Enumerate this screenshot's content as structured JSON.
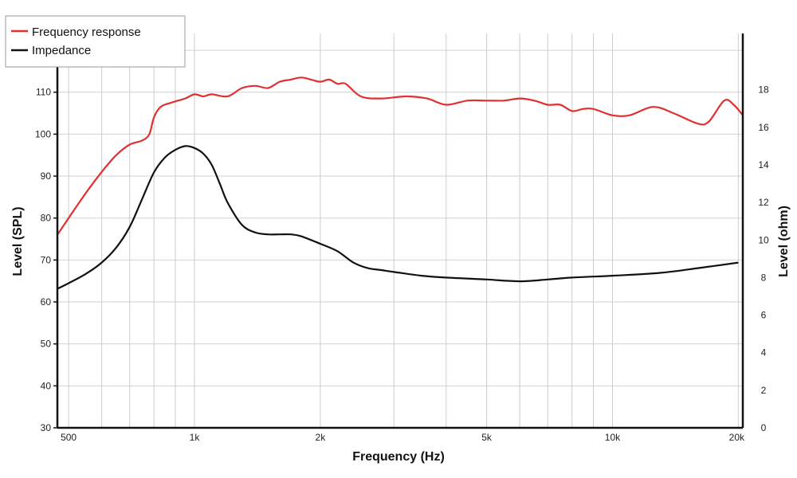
{
  "chart_data": {
    "type": "line",
    "xlabel": "Frequency (Hz)",
    "ylabel": "Level (SPL)",
    "y2label": "Level (ohm)",
    "x_scale": "log",
    "xlim": [
      470,
      20500
    ],
    "ylim": [
      30,
      124
    ],
    "y2lim": [
      0,
      21
    ],
    "grid": true,
    "legend_position": "top-left",
    "x_ticks": [
      {
        "value": 500,
        "label": "500"
      },
      {
        "value": 1000,
        "label": "1k"
      },
      {
        "value": 2000,
        "label": "2k"
      },
      {
        "value": 5000,
        "label": "5k"
      },
      {
        "value": 10000,
        "label": "10k"
      },
      {
        "value": 20000,
        "label": "20k"
      }
    ],
    "x_minor_grid": [
      600,
      700,
      800,
      900,
      3000,
      4000,
      6000,
      7000,
      8000,
      9000
    ],
    "y_ticks": [
      {
        "value": 30,
        "label": "30"
      },
      {
        "value": 40,
        "label": "40"
      },
      {
        "value": 50,
        "label": "50"
      },
      {
        "value": 60,
        "label": "60"
      },
      {
        "value": 70,
        "label": "70"
      },
      {
        "value": 80,
        "label": "80"
      },
      {
        "value": 90,
        "label": "90"
      },
      {
        "value": 100,
        "label": "100"
      },
      {
        "value": 110,
        "label": "110"
      },
      {
        "value": 120,
        "label": "120"
      }
    ],
    "y2_ticks": [
      {
        "value": 0,
        "label": "0"
      },
      {
        "value": 2,
        "label": "2"
      },
      {
        "value": 4,
        "label": "4"
      },
      {
        "value": 6,
        "label": "6"
      },
      {
        "value": 8,
        "label": "8"
      },
      {
        "value": 10,
        "label": "10"
      },
      {
        "value": 12,
        "label": "12"
      },
      {
        "value": 14,
        "label": "14"
      },
      {
        "value": 16,
        "label": "16"
      },
      {
        "value": 18,
        "label": "18"
      }
    ],
    "series": [
      {
        "name": "Frequency response",
        "color": "#e03030",
        "axis": "left",
        "x": [
          470,
          500,
          550,
          600,
          650,
          700,
          750,
          780,
          800,
          830,
          880,
          950,
          1000,
          1050,
          1100,
          1200,
          1300,
          1400,
          1500,
          1600,
          1700,
          1800,
          1900,
          2000,
          2100,
          2200,
          2300,
          2500,
          2800,
          3200,
          3600,
          4000,
          4500,
          5000,
          5500,
          6000,
          6500,
          7000,
          7500,
          8000,
          8500,
          9000,
          10000,
          11000,
          12500,
          14000,
          16000,
          17000,
          18500,
          19500,
          20500
        ],
        "y": [
          76,
          80,
          86,
          91,
          95,
          97.5,
          98.5,
          100,
          104,
          106.5,
          107.5,
          108.5,
          109.5,
          109,
          109.5,
          109,
          111,
          111.5,
          111,
          112.5,
          113,
          113.5,
          113,
          112.5,
          113,
          112,
          112,
          109,
          108.5,
          109,
          108.5,
          107,
          108,
          108,
          108,
          108.5,
          108,
          107,
          107,
          105.5,
          106,
          106,
          104.5,
          104.5,
          106.5,
          105,
          102.5,
          103,
          108,
          107,
          104.5
        ]
      },
      {
        "name": "Impedance",
        "color": "#111111",
        "axis": "right",
        "x": [
          470,
          500,
          550,
          600,
          650,
          700,
          750,
          800,
          850,
          900,
          950,
          1000,
          1050,
          1100,
          1150,
          1200,
          1300,
          1400,
          1500,
          1600,
          1700,
          1800,
          2000,
          2200,
          2400,
          2600,
          2800,
          3000,
          3500,
          4000,
          5000,
          6000,
          7000,
          8000,
          10000,
          13000,
          16000,
          20000
        ],
        "y": [
          7.4,
          7.7,
          8.2,
          8.8,
          9.6,
          10.7,
          12.2,
          13.6,
          14.4,
          14.8,
          15.0,
          14.9,
          14.6,
          14.0,
          13.0,
          12.0,
          10.8,
          10.4,
          10.3,
          10.3,
          10.3,
          10.2,
          9.8,
          9.4,
          8.8,
          8.5,
          8.4,
          8.3,
          8.1,
          8.0,
          7.9,
          7.8,
          7.9,
          8.0,
          8.1,
          8.25,
          8.5,
          8.8
        ]
      }
    ]
  }
}
